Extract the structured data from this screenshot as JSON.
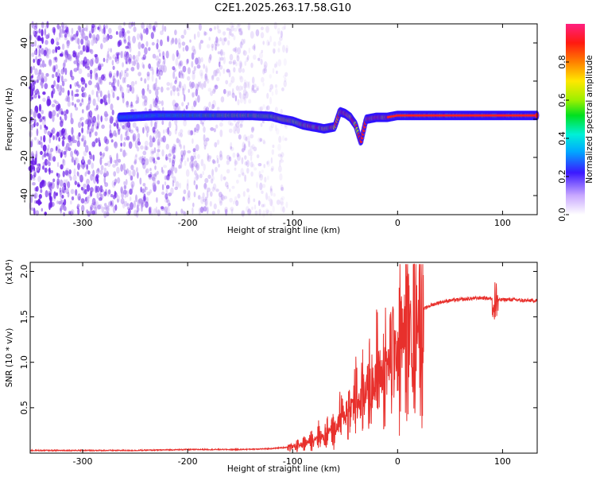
{
  "title": "C2E1.2025.263.17.58.G10",
  "colors": {
    "snr_line": "#e8302c",
    "spectrogram_noise": "#7a2ee6",
    "background": "#ffffff"
  },
  "chart_data": [
    {
      "type": "heatmap",
      "name": "spectrogram",
      "xlabel": "Height of straight line (km)",
      "ylabel": "Frequency (Hz)",
      "xlim": [
        -350,
        133
      ],
      "ylim": [
        -50,
        50
      ],
      "xticks": [
        -300,
        -200,
        -100,
        0,
        100
      ],
      "xtick_labels": [
        "-300",
        "-200",
        "-100",
        "0",
        "100"
      ],
      "yticks": [
        -40,
        -20,
        0,
        20,
        40
      ],
      "ytick_labels": [
        "-40",
        "-20",
        "0",
        "20",
        "40"
      ],
      "colorbar": {
        "label": "Normalized spectral amplitude",
        "range": [
          0.0,
          1.0
        ],
        "ticks": [
          0.0,
          0.2,
          0.4,
          0.6,
          0.8
        ],
        "tick_labels": [
          "0.0",
          "0.2",
          "0.4",
          "0.6",
          "0.8"
        ],
        "colormap": "rainbow"
      },
      "signal_track": {
        "x": [
          -265,
          -230,
          -200,
          -170,
          -140,
          -120,
          -110,
          -100,
          -90,
          -80,
          -70,
          -60,
          -55,
          -50,
          -45,
          -40,
          -35,
          -30,
          -20,
          -10,
          0,
          20,
          50,
          80,
          100,
          133
        ],
        "y": [
          1,
          2,
          2,
          2,
          2,
          1.5,
          0,
          -1,
          -3,
          -4,
          -5,
          -4,
          4,
          3,
          1,
          -3,
          -12,
          0,
          1,
          1,
          2,
          2,
          2,
          2,
          2,
          2
        ]
      },
      "noise_floor_until_x": -110
    },
    {
      "type": "line",
      "name": "snr",
      "xlabel": "Height of straight line (km)",
      "ylabel": "SNR (10 * v/v)",
      "scale_label": "(x10⁴)",
      "xlim": [
        -350,
        133
      ],
      "ylim": [
        0,
        2.1
      ],
      "xticks": [
        -300,
        -200,
        -100,
        0,
        100
      ],
      "xtick_labels": [
        "-300",
        "-200",
        "-100",
        "0",
        "100"
      ],
      "yticks": [
        0.5,
        1.0,
        1.5,
        2.0
      ],
      "ytick_labels": [
        "0.5",
        "1.0",
        "1.5",
        "2.0"
      ],
      "series": [
        {
          "name": "SNR",
          "x": [
            -350,
            -300,
            -250,
            -200,
            -150,
            -120,
            -100,
            -90,
            -80,
            -75,
            -70,
            -65,
            -60,
            -55,
            -50,
            -45,
            -40,
            -35,
            -30,
            -25,
            -20,
            -15,
            -10,
            -5,
            0,
            5,
            10,
            15,
            20,
            30,
            40,
            50,
            60,
            70,
            80,
            90,
            95,
            100,
            110,
            120,
            133
          ],
          "y": [
            0.03,
            0.03,
            0.03,
            0.04,
            0.04,
            0.05,
            0.07,
            0.1,
            0.15,
            0.2,
            0.17,
            0.28,
            0.22,
            0.38,
            0.42,
            0.5,
            0.6,
            0.55,
            0.75,
            0.7,
            0.9,
            0.85,
            0.95,
            1.1,
            1.15,
            1.3,
            1.35,
            1.45,
            1.55,
            1.62,
            1.66,
            1.68,
            1.69,
            1.7,
            1.71,
            1.7,
            1.68,
            1.69,
            1.69,
            1.68,
            1.68
          ]
        }
      ]
    }
  ]
}
